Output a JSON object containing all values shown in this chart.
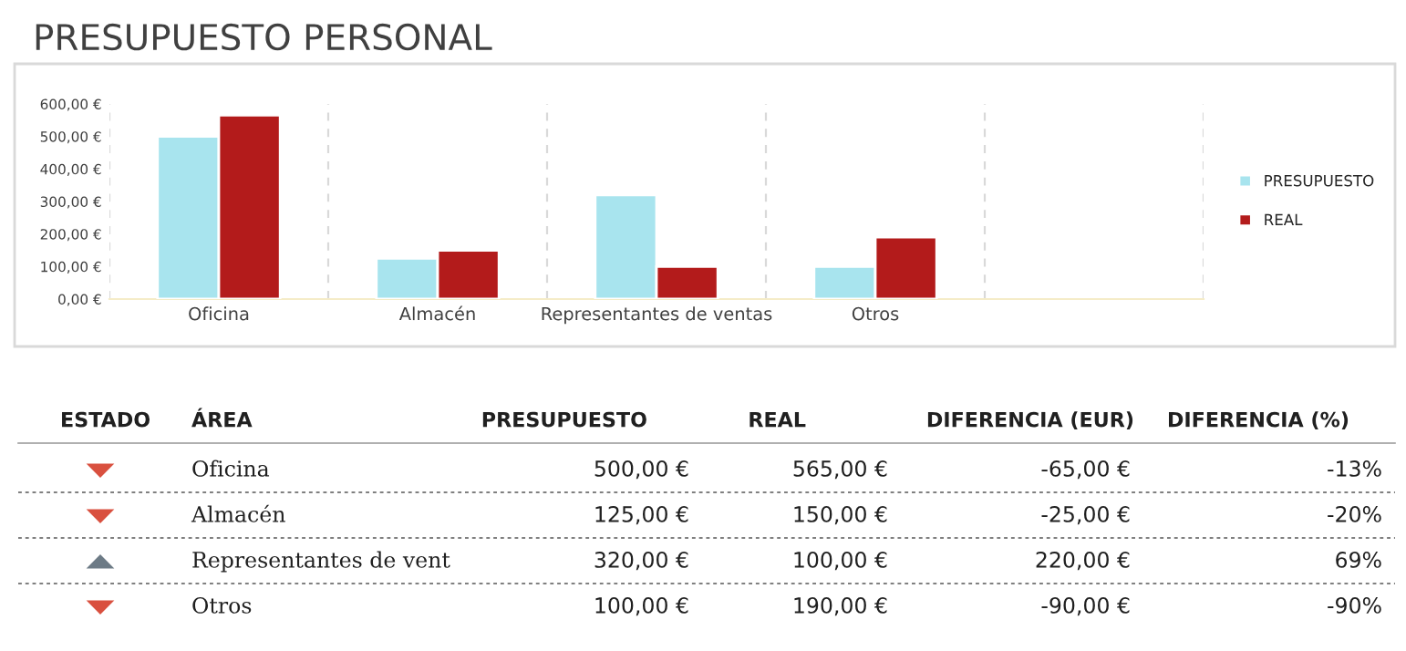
{
  "chart_data": {
    "type": "bar",
    "title": "PRESUPUESTO PERSONAL",
    "categories": [
      "Oficina",
      "Almacén",
      "Representantes de ventas",
      "Otros",
      null
    ],
    "series": [
      {
        "name": "PRESUPUESTO",
        "color": "#a8e4ee",
        "values": [
          500,
          125,
          320,
          100,
          null
        ]
      },
      {
        "name": "REAL",
        "color": "#b31b1b",
        "values": [
          565,
          150,
          100,
          190,
          null
        ]
      }
    ],
    "ylim": [
      0,
      600
    ],
    "yticks": [
      {
        "value": 0,
        "label": "0,00 €"
      },
      {
        "value": 100,
        "label": "100,00 €"
      },
      {
        "value": 200,
        "label": "200,00 €"
      },
      {
        "value": 300,
        "label": "300,00 €"
      },
      {
        "value": 400,
        "label": "400,00 €"
      },
      {
        "value": 500,
        "label": "500,00 €"
      },
      {
        "value": 600,
        "label": "600,00 €"
      }
    ],
    "grid": "x",
    "legend": "right",
    "annotations": [
      "ESTADO",
      "ÁREA",
      "PRESUPUESTO",
      "REAL",
      "DIFERENCIA (EUR)",
      "DIFERENCIA (%)",
      "Oficina",
      "500,00 €",
      "565,00 €",
      "-65,00 €",
      "-13%",
      "Almacén",
      "125,00 €",
      "150,00 €",
      "-25,00 €",
      "-20%",
      "Representantes de vent",
      "320,00 €",
      "100,00 €",
      "220,00 €",
      "69%",
      "Otros",
      "100,00 €",
      "190,00 €",
      "-90,00 €",
      "-90%"
    ]
  }
}
